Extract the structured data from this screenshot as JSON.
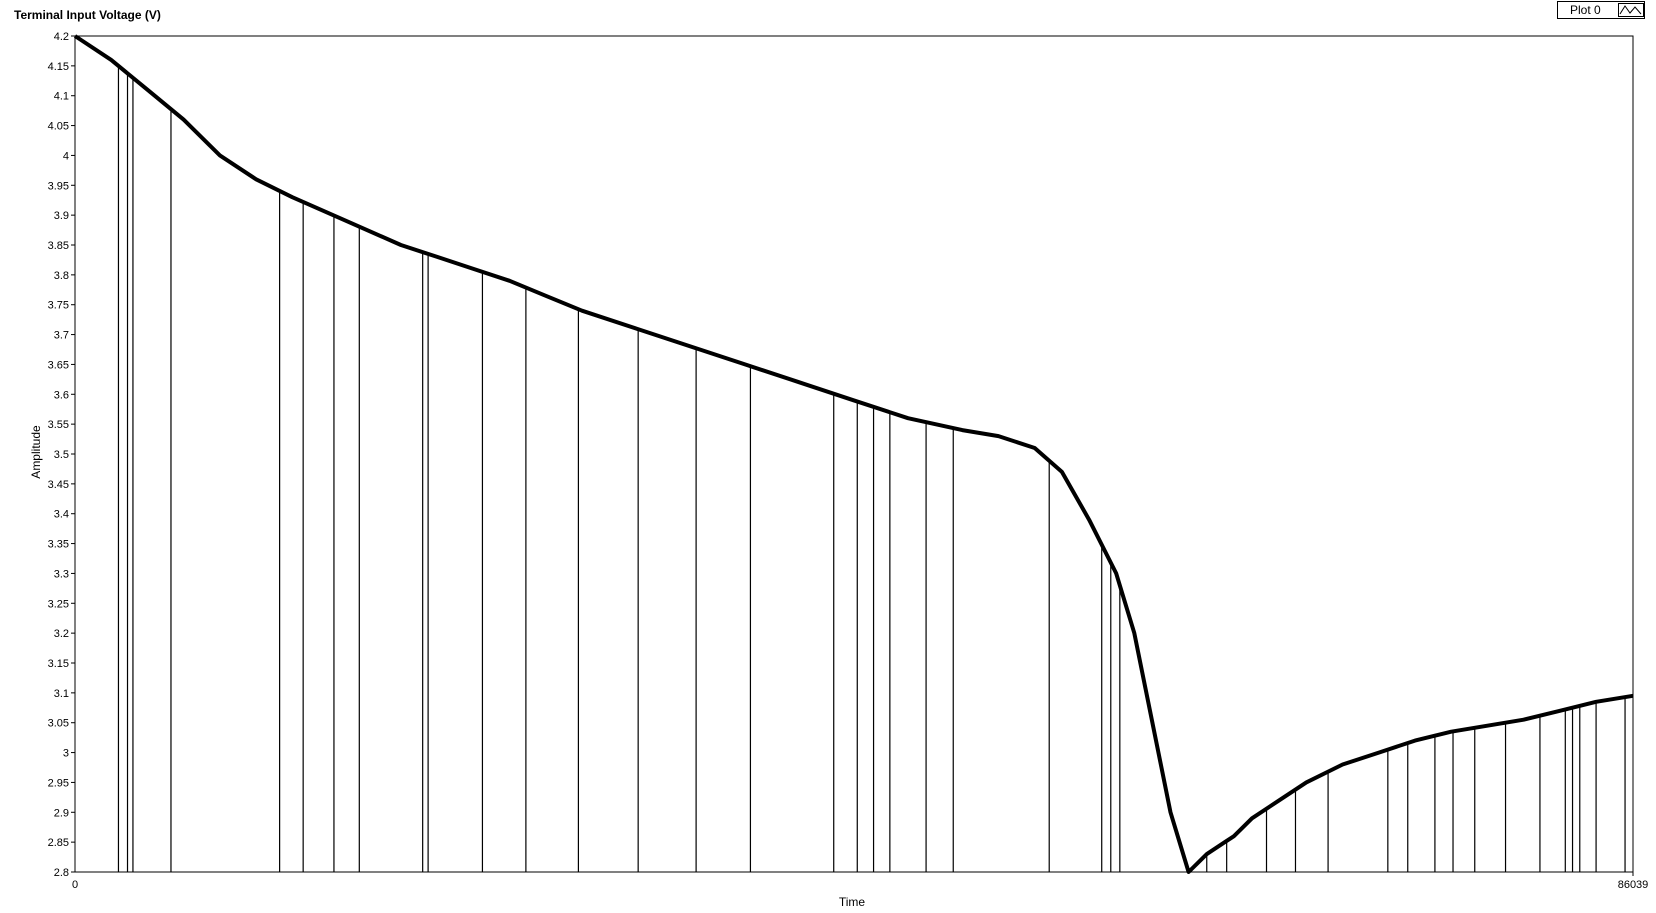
{
  "chart_data": {
    "type": "line",
    "title": "Terminal Input Voltage (V)",
    "xlabel": "Time",
    "ylabel": "Amplitude",
    "xlim": [
      0,
      86039
    ],
    "ylim": [
      2.8,
      4.2
    ],
    "x_tick_labels": [
      "0",
      "86039"
    ],
    "y_tick_labels": [
      "4.2",
      "4.15",
      "4.1",
      "4.05",
      "4",
      "3.95",
      "3.9",
      "3.85",
      "3.8",
      "3.75",
      "3.7",
      "3.65",
      "3.6",
      "3.55",
      "3.5",
      "3.45",
      "3.4",
      "3.35",
      "3.3",
      "3.25",
      "3.2",
      "3.15",
      "3.1",
      "3.05",
      "3",
      "2.95",
      "2.9",
      "2.85",
      "2.8"
    ],
    "y_ticks": [
      4.2,
      4.15,
      4.1,
      4.05,
      4.0,
      3.95,
      3.9,
      3.85,
      3.8,
      3.75,
      3.7,
      3.65,
      3.6,
      3.55,
      3.5,
      3.45,
      3.4,
      3.35,
      3.3,
      3.25,
      3.2,
      3.15,
      3.1,
      3.05,
      3.0,
      2.95,
      2.9,
      2.85,
      2.8
    ],
    "grid": false,
    "legend_position": "top-right",
    "series": [
      {
        "name": "Plot 0",
        "color": "#000000",
        "x": [
          0,
          500,
          2000,
          4000,
          6000,
          8000,
          10000,
          12000,
          15000,
          18000,
          20000,
          22000,
          24000,
          26000,
          28000,
          31000,
          34000,
          37000,
          40000,
          43000,
          46000,
          49000,
          51000,
          53000,
          54500,
          56000,
          57500,
          58500,
          59500,
          60500,
          61500,
          62500,
          63500,
          64000,
          65000,
          66500,
          68000,
          70000,
          72000,
          74000,
          76000,
          78000,
          80000,
          82000,
          84000,
          86039
        ],
        "y": [
          4.2,
          4.19,
          4.16,
          4.11,
          4.06,
          4.0,
          3.96,
          3.93,
          3.89,
          3.85,
          3.83,
          3.81,
          3.79,
          3.765,
          3.74,
          3.71,
          3.68,
          3.65,
          3.62,
          3.59,
          3.56,
          3.54,
          3.53,
          3.51,
          3.47,
          3.39,
          3.3,
          3.2,
          3.05,
          2.9,
          2.8,
          2.83,
          2.85,
          2.86,
          2.89,
          2.92,
          2.95,
          2.98,
          3.0,
          3.02,
          3.035,
          3.045,
          3.055,
          3.07,
          3.085,
          3.095
        ]
      }
    ],
    "spikes": {
      "description_values": "noise spikes from the trace down to the axis minimum (2.8) at these x positions",
      "x": [
        2400,
        2900,
        3200,
        5300,
        11300,
        12600,
        14300,
        15700,
        19200,
        19500,
        22500,
        24900,
        27800,
        31100,
        34300,
        37300,
        41900,
        43200,
        44100,
        45000,
        47000,
        48500,
        53800,
        56700,
        57200,
        57700,
        62500,
        63600,
        65800,
        67400,
        69200,
        72500,
        73600,
        75100,
        76100,
        77300,
        79000,
        80900,
        82300,
        82700,
        83100,
        84000,
        85600
      ]
    },
    "legend": {
      "label": "Plot 0"
    }
  }
}
